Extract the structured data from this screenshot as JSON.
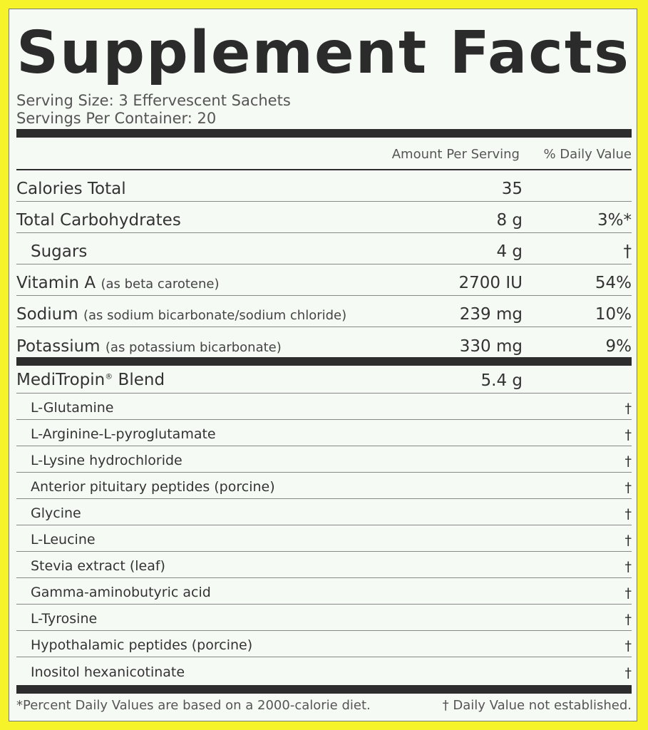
{
  "title": "Supplement Facts",
  "serving_size": "Serving Size: 3 Effervescent Sachets",
  "servings_per_container": "Servings Per Container: 20",
  "header": {
    "amount": "Amount Per Serving",
    "daily_value": "% Daily Value"
  },
  "nutrients": [
    {
      "name": "Calories Total",
      "note": "",
      "amount": "35",
      "dv": ""
    },
    {
      "name": "Total Carbohydrates",
      "note": "",
      "amount": "8 g",
      "dv": "3%*"
    },
    {
      "name": "Sugars",
      "note": "",
      "amount": "4 g",
      "dv": "†"
    },
    {
      "name": "Vitamin A",
      "note": "(as beta carotene)",
      "amount": "2700 IU",
      "dv": "54%"
    },
    {
      "name": "Sodium",
      "note": "(as sodium bicarbonate/sodium chloride)",
      "amount": "239 mg",
      "dv": "10%"
    },
    {
      "name": "Potassium",
      "note": "(as potassium bicarbonate)",
      "amount": "330 mg",
      "dv": "9%"
    }
  ],
  "blend": {
    "name": "MediTropin",
    "mark": "®",
    "suffix": " Blend",
    "amount": "5.4 g",
    "items": [
      {
        "name": "L-Glutamine",
        "dv": "†"
      },
      {
        "name": "L-Arginine-L-pyroglutamate",
        "dv": "†"
      },
      {
        "name": "L-Lysine hydrochloride",
        "dv": "†"
      },
      {
        "name": "Anterior pituitary peptides (porcine)",
        "dv": "†"
      },
      {
        "name": "Glycine",
        "dv": "†"
      },
      {
        "name": "L-Leucine",
        "dv": "†"
      },
      {
        "name": "Stevia extract (leaf)",
        "dv": "†"
      },
      {
        "name": "Gamma-aminobutyric acid",
        "dv": "†"
      },
      {
        "name": "L-Tyrosine",
        "dv": "†"
      },
      {
        "name": "Hypothalamic peptides (porcine)",
        "dv": "†"
      },
      {
        "name": "Inositol hexanicotinate",
        "dv": "†"
      }
    ]
  },
  "footer": {
    "left": "*Percent Daily Values are based on a 2000-calorie diet.",
    "right": "† Daily Value not established."
  },
  "colors": {
    "background": "#f7f32a",
    "panel": "#f6faf5",
    "text": "#333333"
  }
}
